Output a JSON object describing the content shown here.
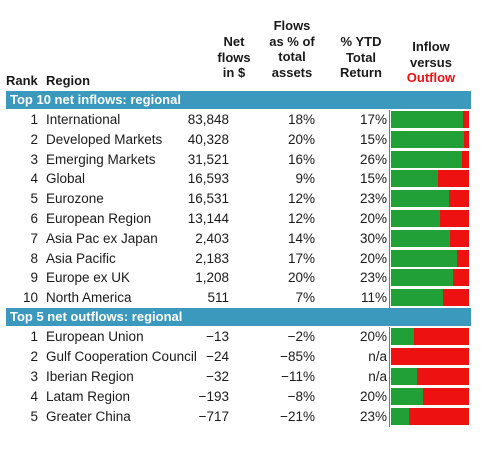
{
  "headers": {
    "rank": "Rank",
    "region": "Region",
    "net_flows": [
      "Net",
      "flows",
      "in $"
    ],
    "pct_assets": [
      "Flows",
      "as % of",
      "total",
      "assets"
    ],
    "ytd": [
      "% YTD",
      "Total",
      "Return"
    ],
    "inflow": "Inflow",
    "versus": "versus",
    "outflow": "Outflow"
  },
  "sections": {
    "inflows_title": "Top 10 net inflows: regional",
    "outflows_title": "Top 5 net outflows: regional"
  },
  "colors": {
    "inflow": "#21a038",
    "outflow": "#ee1111",
    "band": "#3b99be"
  },
  "chart_data": {
    "type": "table",
    "title": "",
    "columns": [
      "Rank",
      "Region",
      "Net flows in $",
      "Flows as % of total assets",
      "% YTD Total Return",
      "Inflow versus Outflow"
    ],
    "inflows": [
      {
        "rank": "1",
        "region": "International",
        "flows": "83,848",
        "pct": "18%",
        "ytd": "17%",
        "inflow_share": 0.92
      },
      {
        "rank": "2",
        "region": "Developed Markets",
        "flows": "40,328",
        "pct": "20%",
        "ytd": "15%",
        "inflow_share": 0.93
      },
      {
        "rank": "3",
        "region": "Emerging Markets",
        "flows": "31,521",
        "pct": "16%",
        "ytd": "26%",
        "inflow_share": 0.91
      },
      {
        "rank": "4",
        "region": "Global",
        "flows": "16,593",
        "pct": "9%",
        "ytd": "15%",
        "inflow_share": 0.6
      },
      {
        "rank": "5",
        "region": "Eurozone",
        "flows": "16,531",
        "pct": "12%",
        "ytd": "23%",
        "inflow_share": 0.74
      },
      {
        "rank": "6",
        "region": "European Region",
        "flows": "13,144",
        "pct": "12%",
        "ytd": "20%",
        "inflow_share": 0.63
      },
      {
        "rank": "7",
        "region": "Asia Pac ex Japan",
        "flows": "2,403",
        "pct": "14%",
        "ytd": "30%",
        "inflow_share": 0.76
      },
      {
        "rank": "8",
        "region": "Asia Pacific",
        "flows": "2,183",
        "pct": "17%",
        "ytd": "20%",
        "inflow_share": 0.84
      },
      {
        "rank": "9",
        "region": "Europe ex UK",
        "flows": "1,208",
        "pct": "20%",
        "ytd": "23%",
        "inflow_share": 0.8
      },
      {
        "rank": "10",
        "region": "North America",
        "flows": "511",
        "pct": "7%",
        "ytd": "11%",
        "inflow_share": 0.67
      }
    ],
    "outflows": [
      {
        "rank": "1",
        "region": "European Union",
        "flows": "−13",
        "pct": "−2%",
        "ytd": "20%",
        "inflow_share": 0.29
      },
      {
        "rank": "2",
        "region": "Gulf Cooperation Council",
        "flows": "−24",
        "pct": "−85%",
        "ytd": "n/a",
        "inflow_share": 0.0
      },
      {
        "rank": "3",
        "region": "Iberian Region",
        "flows": "−32",
        "pct": "−11%",
        "ytd": "n/a",
        "inflow_share": 0.33
      },
      {
        "rank": "4",
        "region": "Latam Region",
        "flows": "−193",
        "pct": "−8%",
        "ytd": "20%",
        "inflow_share": 0.41
      },
      {
        "rank": "5",
        "region": "Greater China",
        "flows": "−717",
        "pct": "−21%",
        "ytd": "23%",
        "inflow_share": 0.23
      }
    ]
  }
}
